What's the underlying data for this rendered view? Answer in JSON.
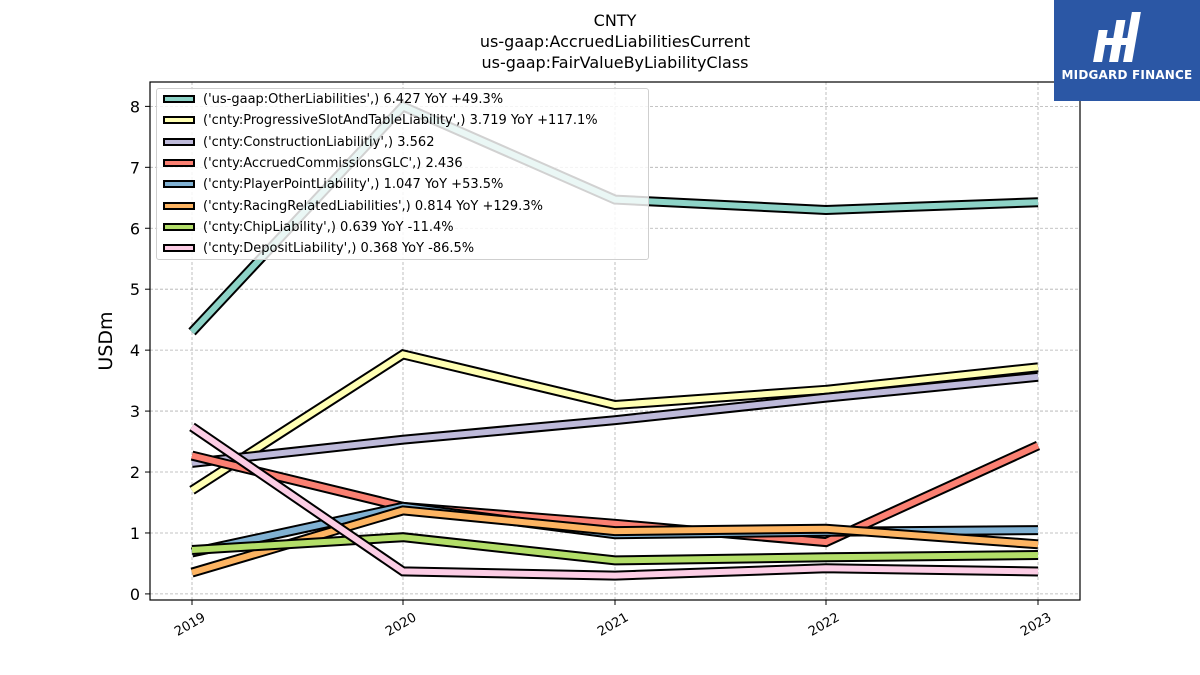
{
  "titles": [
    "CNTY",
    "us-gaap:AccruedLiabilitiesCurrent",
    "us-gaap:FairValueByLiabilityClass"
  ],
  "logo": {
    "text": "MIDGARD FINANCE",
    "bg_color": "#2b57a5"
  },
  "chart_data": {
    "type": "line",
    "title": "CNTY\nus-gaap:AccruedLiabilitiesCurrent\nus-gaap:FairValueByLiabilityClass",
    "ylabel": "USDm",
    "xlabel": "",
    "categories": [
      "2019",
      "2020",
      "2021",
      "2022",
      "2023"
    ],
    "yticks": [
      "0",
      "1",
      "2",
      "3",
      "4",
      "5",
      "6",
      "7",
      "8"
    ],
    "ylim": [
      -0.1,
      8.4
    ],
    "grid": true,
    "legend_position": "top-left",
    "series": [
      {
        "name": "('us-gaap:OtherLiabilities',) 6.427 YoY +49.3%",
        "color": "#8dd3c7",
        "values": [
          4.3,
          8.0,
          6.47,
          6.3,
          6.427
        ]
      },
      {
        "name": "('cnty:ProgressiveSlotAndTableLiability',) 3.719 YoY +117.1%",
        "color": "#ffffb3",
        "values": [
          1.7,
          3.93,
          3.1,
          3.35,
          3.719
        ]
      },
      {
        "name": "('cnty:ConstructionLiabilitiy',) 3.562",
        "color": "#bebada",
        "values": [
          2.15,
          2.53,
          2.85,
          3.22,
          3.562
        ]
      },
      {
        "name": "('cnty:AccruedCommissionsGLC',) 2.436",
        "color": "#fb8072",
        "values": [
          2.27,
          1.43,
          1.15,
          0.85,
          2.436
        ]
      },
      {
        "name": "('cnty:PlayerPointLiability',) 1.047 YoY +53.5%",
        "color": "#80b1d3",
        "values": [
          0.68,
          1.43,
          0.98,
          1.02,
          1.047
        ]
      },
      {
        "name": "('cnty:RacingRelatedLiabilities',) 0.814 YoY +129.3%",
        "color": "#fdb462",
        "values": [
          0.35,
          1.37,
          1.03,
          1.07,
          0.814
        ]
      },
      {
        "name": "('cnty:ChipLiability',) 0.639 YoY -11.4%",
        "color": "#b3de69",
        "values": [
          0.72,
          0.93,
          0.55,
          0.6,
          0.639
        ]
      },
      {
        "name": "('cnty:DepositLiability',) 0.368 YoY -86.5%",
        "color": "#fccde5",
        "values": [
          2.74,
          0.37,
          0.3,
          0.42,
          0.368
        ]
      }
    ]
  }
}
